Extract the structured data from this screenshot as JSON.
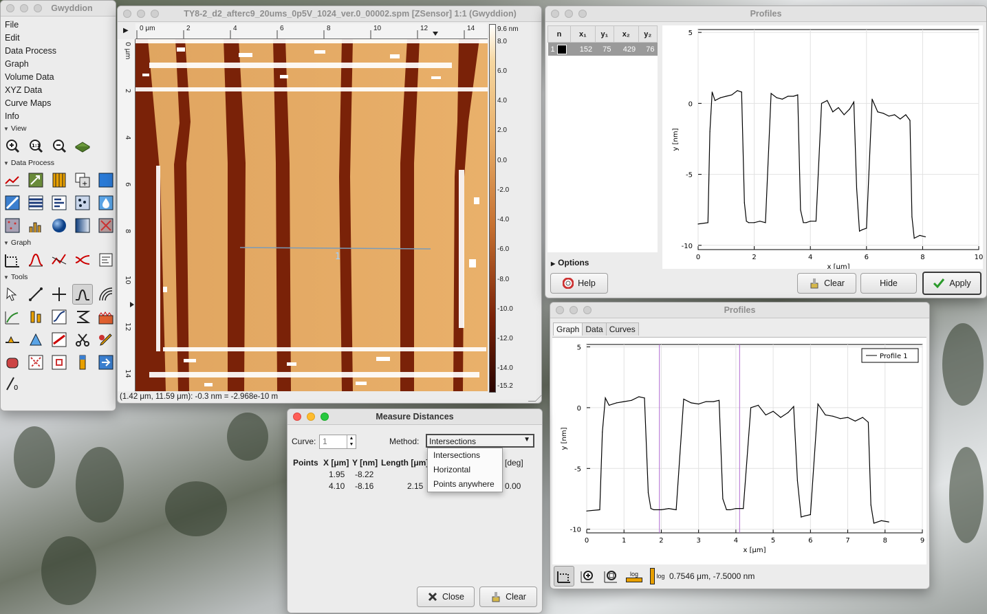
{
  "toolbox": {
    "title": "Gwyddion",
    "menu": [
      "File",
      "Edit",
      "Data Process",
      "Graph",
      "Volume Data",
      "XYZ Data",
      "Curve Maps",
      "Info"
    ],
    "sections": {
      "view": "View",
      "data_process": "Data Process",
      "graph": "Graph",
      "tools": "Tools"
    }
  },
  "image_window": {
    "title": "TY8-2_d2_afterc9_20ums_0p5V_1024_ver.0_00002.spm [ZSensor] 1:1 (Gwyddion)",
    "x_ticks": [
      "0 μm",
      "2",
      "4",
      "6",
      "8",
      "10",
      "12",
      "14"
    ],
    "y_ticks": [
      "0 μm",
      "2",
      "4",
      "6",
      "8",
      "10",
      "12",
      "14"
    ],
    "scale_top": "9.6 nm",
    "scale_ticks": [
      "8.0",
      "6.0",
      "4.0",
      "2.0",
      "0.0",
      "-2.0",
      "-4.0",
      "-6.0",
      "-8.0",
      "-10.0",
      "-12.0",
      "-14.0",
      "-15.2"
    ],
    "line_label": "1",
    "status": "(1.42 μm, 11.59 μm): -0.3 nm = -2.968e-10 m"
  },
  "profiles_tool": {
    "title": "Profiles",
    "table_headers": [
      "n",
      "x₁",
      "y₁",
      "x₂",
      "y₂"
    ],
    "rows": [
      {
        "n": "1",
        "x1": "152",
        "y1": "75",
        "x2": "429",
        "y2": "76"
      }
    ],
    "options_label": "Options",
    "help_label": "Help",
    "clear_label": "Clear",
    "hide_label": "Hide",
    "apply_label": "Apply",
    "plot": {
      "x_ticks": [
        "0",
        "2",
        "4",
        "6",
        "8",
        "10"
      ],
      "y_ticks": [
        "5",
        "0",
        "-5",
        "-10"
      ],
      "xlabel": "x [μm]",
      "ylabel": "y [nm]"
    }
  },
  "profiles_graph": {
    "title": "Profiles",
    "tabs": [
      "Graph",
      "Data",
      "Curves"
    ],
    "legend": "Profile 1",
    "x_ticks": [
      "0",
      "1",
      "2",
      "3",
      "4",
      "5",
      "6",
      "7",
      "8",
      "9"
    ],
    "y_ticks": [
      "5",
      "0",
      "-5",
      "-10"
    ],
    "xlabel": "x [μm]",
    "ylabel": "y [nm]",
    "status": "0.7546 μm, -7.5000 nm",
    "log_labels": [
      "log",
      "log"
    ]
  },
  "measure": {
    "title": "Measure Distances",
    "curve_label": "Curve:",
    "curve_value": "1",
    "method_label": "Method:",
    "method_value": "Intersections",
    "method_options": [
      "Intersections",
      "Horizontal",
      "Points anywhere"
    ],
    "headers": {
      "points": "Points",
      "x": "X [μm]",
      "y": "Y [nm]",
      "length": "Length [μm]",
      "angle": "[deg]"
    },
    "rows": [
      {
        "x": "1.95",
        "y": "-8.22",
        "length": "",
        "angle": ""
      },
      {
        "x": "4.10",
        "y": "-8.16",
        "length": "2.15",
        "angle": "0.00"
      }
    ],
    "close_label": "Close",
    "clear_label": "Clear"
  },
  "chart_data": {
    "type": "line",
    "title": "",
    "xlabel": "x [μm]",
    "ylabel": "y [nm]",
    "xlim": [
      0,
      9
    ],
    "ylim": [
      -10.5,
      5
    ],
    "series": [
      {
        "name": "Profile 1",
        "x": [
          0,
          0.35,
          0.42,
          0.5,
          0.6,
          0.8,
          1.0,
          1.2,
          1.4,
          1.55,
          1.65,
          1.72,
          1.8,
          2.0,
          2.2,
          2.4,
          2.6,
          2.8,
          3.0,
          3.2,
          3.4,
          3.55,
          3.65,
          3.75,
          3.85,
          4.0,
          4.2,
          4.4,
          4.6,
          4.8,
          5.0,
          5.2,
          5.4,
          5.55,
          5.65,
          5.75,
          5.85,
          6.0,
          6.2,
          6.4,
          6.6,
          6.8,
          7.0,
          7.2,
          7.4,
          7.55,
          7.62,
          7.7,
          7.9,
          8.1
        ],
        "y": [
          -8.5,
          -8.4,
          -2.0,
          0.8,
          0.2,
          0.4,
          0.5,
          0.6,
          0.9,
          0.8,
          -7.0,
          -8.3,
          -8.4,
          -8.4,
          -8.3,
          -8.4,
          0.7,
          0.4,
          0.3,
          0.5,
          0.5,
          0.6,
          -7.5,
          -8.4,
          -8.4,
          -8.3,
          -8.3,
          0.0,
          0.2,
          -0.6,
          -0.3,
          -0.8,
          -0.4,
          0.1,
          -6.0,
          -9.0,
          -8.9,
          -8.8,
          0.3,
          -0.6,
          -0.7,
          -0.9,
          -0.8,
          -1.1,
          -0.8,
          -1.2,
          -8.0,
          -9.5,
          -9.3,
          -9.4
        ]
      }
    ]
  }
}
